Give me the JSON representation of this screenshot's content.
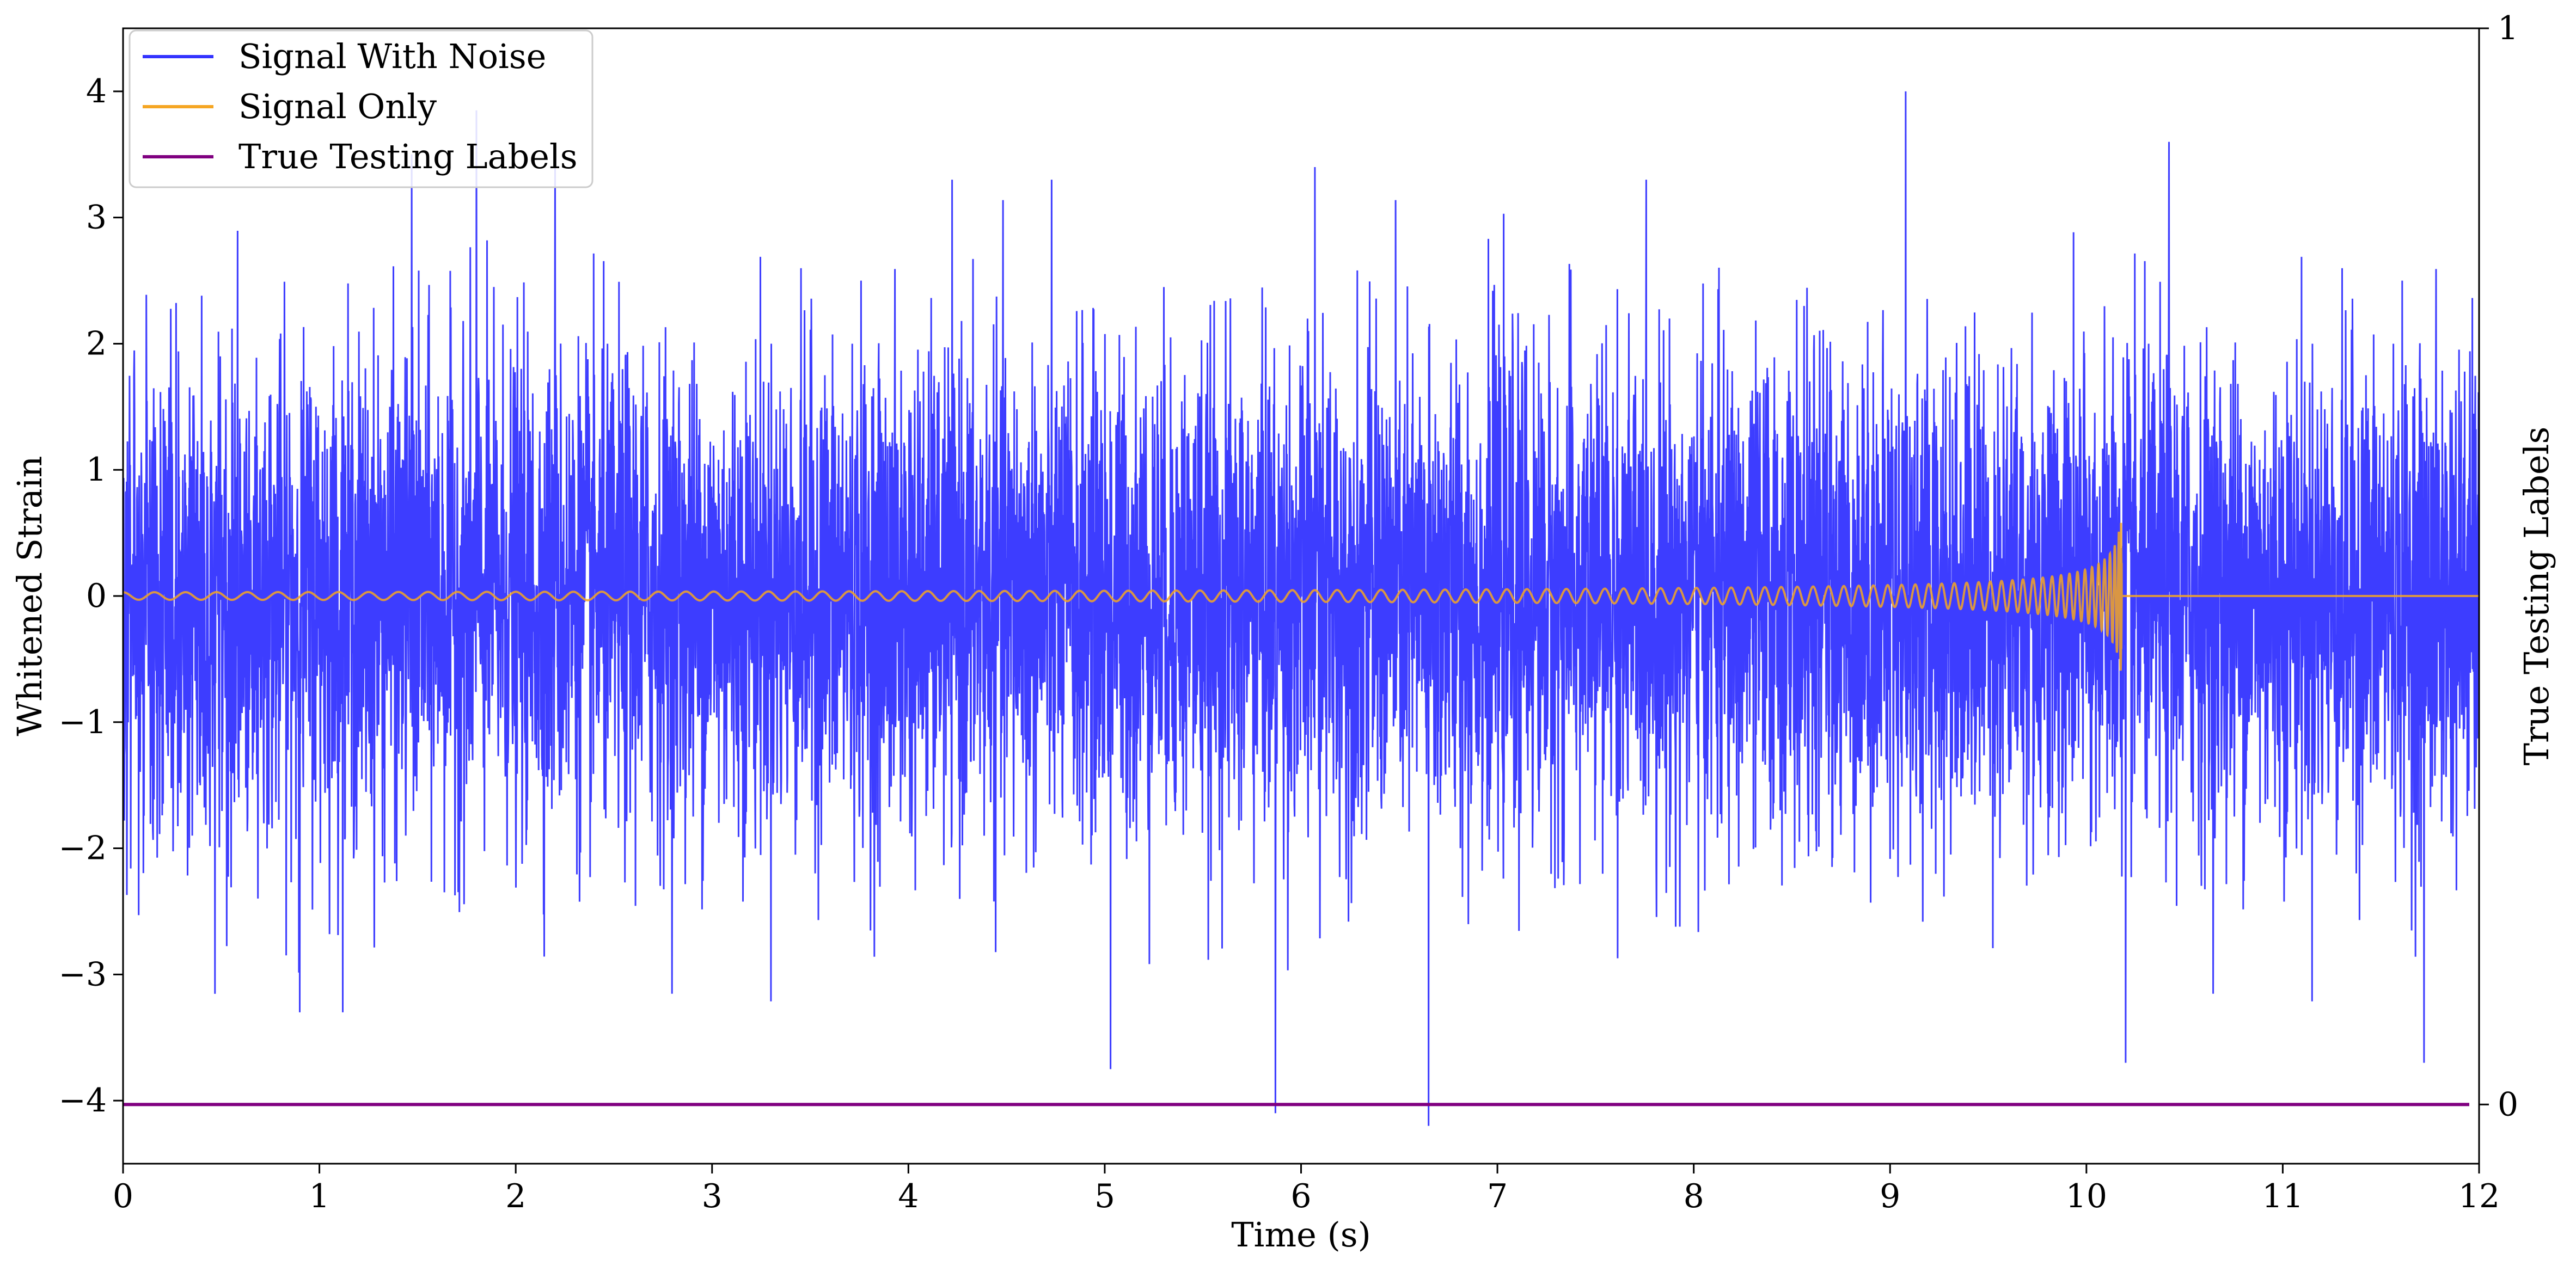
{
  "chart_data": {
    "type": "line",
    "xlabel": "Time (s)",
    "ylabel_left": "Whitened Strain",
    "ylabel_right": "True Testing Labels",
    "xlim": [
      0,
      12
    ],
    "ylim_left": [
      -4.5,
      4.5
    ],
    "ylim_right": [
      -0.055,
      1
    ],
    "x_ticks": [
      "0",
      "1",
      "2",
      "3",
      "4",
      "5",
      "6",
      "7",
      "8",
      "9",
      "10",
      "11",
      "12"
    ],
    "y_ticks_left": [
      "−4",
      "−3",
      "−2",
      "−1",
      "0",
      "1",
      "2",
      "3",
      "4"
    ],
    "y_tick_values_left": [
      -4,
      -3,
      -2,
      -1,
      0,
      1,
      2,
      3,
      4
    ],
    "y_ticks_right": [
      "0",
      "1"
    ],
    "y_tick_values_right": [
      0,
      1
    ],
    "grid": false,
    "legend_position": "top-left",
    "series": [
      {
        "name": "Signal With Noise",
        "color": "#3333ff",
        "axis": "left",
        "description_values": {
          "mean": 0,
          "typical_amplitude_range": [
            -2.5,
            2.5
          ],
          "max_peak": 4.0,
          "min_peak": -4.2,
          "peaks": [
            {
              "x": 1.47,
              "y": 3.5
            },
            {
              "x": 1.8,
              "y": 3.85
            },
            {
              "x": 2.2,
              "y": 3.5
            },
            {
              "x": 6.07,
              "y": 3.4
            },
            {
              "x": 9.08,
              "y": 4.0
            },
            {
              "x": 10.42,
              "y": 3.6
            },
            {
              "x": 5.87,
              "y": -4.1
            },
            {
              "x": 6.65,
              "y": -4.2
            },
            {
              "x": 5.03,
              "y": -3.75
            },
            {
              "x": 10.2,
              "y": -3.7
            },
            {
              "x": 11.72,
              "y": -3.7
            },
            {
              "x": 0.9,
              "y": -3.3
            }
          ]
        }
      },
      {
        "name": "Signal Only",
        "color": "#f5a623",
        "axis": "left",
        "description_values": {
          "chirp_merger_time": 10.18,
          "peak_amplitude_positive": 0.58,
          "peak_amplitude_negative": -0.42,
          "amplitude_at_start": 0.03
        }
      },
      {
        "name": "True Testing Labels",
        "color": "#800080",
        "axis": "right",
        "x": [
          0,
          11.95
        ],
        "y": [
          0,
          0
        ]
      }
    ]
  }
}
